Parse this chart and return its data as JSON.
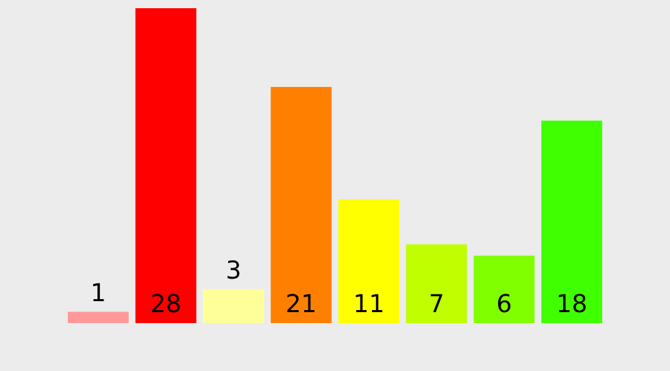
{
  "chart_data": {
    "type": "bar",
    "categories": [
      null,
      null,
      null,
      null,
      null,
      null,
      null,
      null
    ],
    "values": [
      1,
      28,
      3,
      21,
      11,
      7,
      6,
      18
    ],
    "colors": [
      "#ff9999",
      "#ff0000",
      "#ffff99",
      "#ff8000",
      "#ffff00",
      "#bfff00",
      "#80ff00",
      "#40ff00"
    ],
    "data_labels": true
  }
}
